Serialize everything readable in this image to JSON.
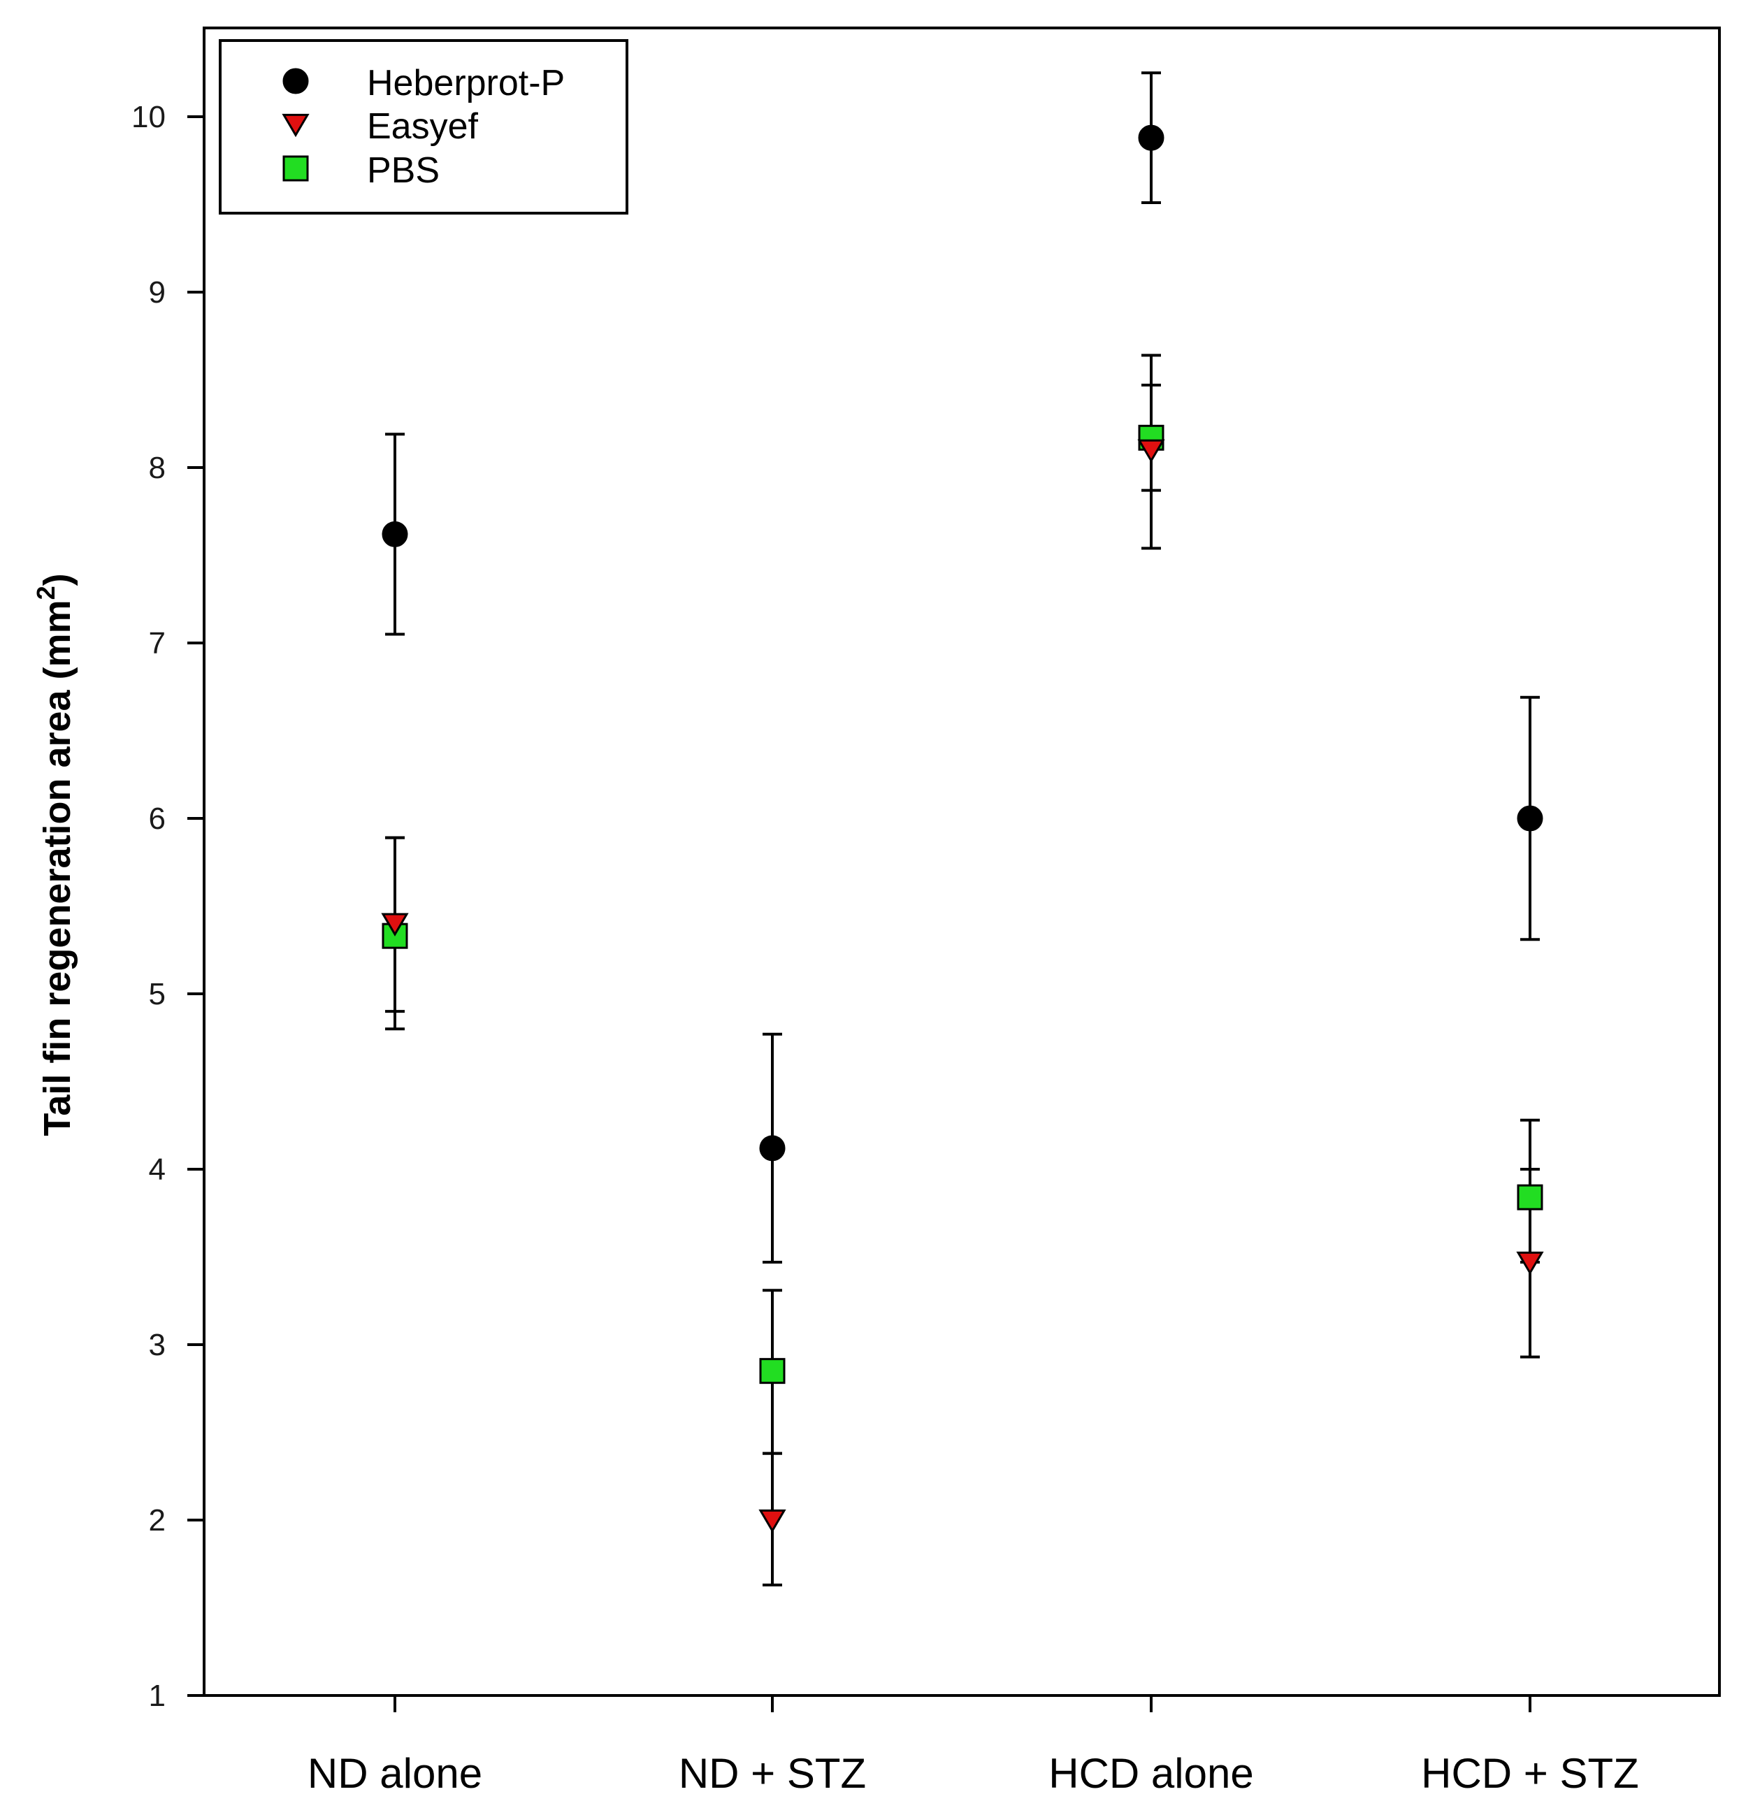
{
  "chart_data": {
    "type": "scatter",
    "title": "",
    "xlabel": "",
    "ylabel": "Tail fin regeneration area (mm",
    "ylabel_superscript": "2",
    "ylabel_suffix": ")",
    "categories": [
      "ND alone",
      "ND + STZ",
      "HCD alone",
      "HCD + STZ"
    ],
    "ylim": [
      1,
      10.5
    ],
    "yticks": [
      1,
      2,
      3,
      4,
      5,
      6,
      7,
      8,
      9,
      10
    ],
    "grid": false,
    "legend_position": "top-left",
    "series": [
      {
        "name": "Heberprot-P",
        "marker": "circle",
        "color": "#000000",
        "values": [
          7.62,
          4.12,
          9.88,
          6.0
        ],
        "err_low": [
          7.05,
          3.47,
          9.51,
          5.31
        ],
        "err_high": [
          8.19,
          4.77,
          10.25,
          6.69
        ]
      },
      {
        "name": "Easyef",
        "marker": "triangle-down",
        "color": "#e01010",
        "values": [
          5.4,
          2.0,
          8.1,
          3.47
        ],
        "err_low": [
          4.9,
          1.63,
          7.54,
          2.93
        ],
        "err_high": [
          5.89,
          2.38,
          8.64,
          4.0
        ]
      },
      {
        "name": "PBS",
        "marker": "square",
        "color": "#22dd22",
        "values": [
          5.33,
          2.85,
          8.17,
          3.84
        ],
        "err_low": [
          4.8,
          2.38,
          7.87,
          3.47
        ],
        "err_high": [
          5.89,
          3.31,
          8.47,
          4.28
        ]
      }
    ]
  }
}
